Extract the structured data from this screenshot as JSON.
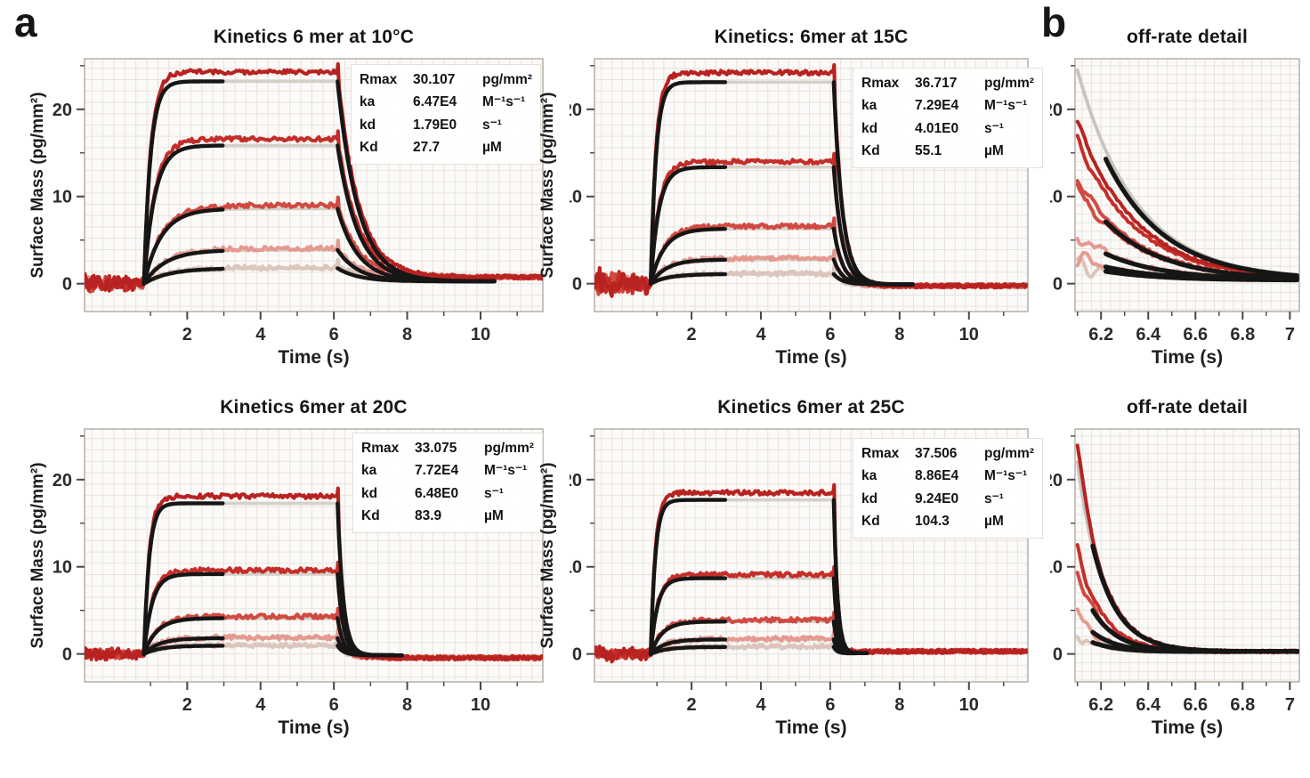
{
  "panels": {
    "a": "a",
    "b": "b"
  },
  "style": {
    "level_colors": [
      "#b82220",
      "#c52e28",
      "#d14a42",
      "#e59a90",
      "#dcc5bc"
    ],
    "fit_black": "#161616",
    "fit_gray": "#d4d0ca",
    "trace_gray": "#c7c3bf",
    "grid_minor": "#e7e3dc",
    "grid_frame": "#b7afa8",
    "tick_color": "#474747",
    "plot_bg": "#fbfaf8",
    "text_color": "#1c1c1c"
  },
  "chart_data": [
    {
      "id": "kin10",
      "panel": "a",
      "type": "line",
      "subtype": "kinetics",
      "title": "Kinetics 6 mer at 10°C",
      "xlabel": "Time (s)",
      "ylabel": "Surface Mass (pg/mm²)",
      "xlim": [
        -0.8,
        11.7
      ],
      "ylim": [
        -3.2,
        25.8
      ],
      "xticks": [
        2,
        4,
        6,
        8,
        10
      ],
      "xticks_minor": [
        1,
        3,
        5,
        7,
        9,
        11
      ],
      "yticks": [
        0,
        10,
        20
      ],
      "yticks_minor": [
        5,
        15,
        25
      ],
      "t_inject": 0.82,
      "t_dissoc": 6.1,
      "fit_assoc_end": 3.0,
      "fit_dissoc_end": 10.4,
      "kd": 1.79,
      "plateaus": [
        24.3,
        16.6,
        9.0,
        4.05,
        1.85
      ],
      "rise_rates": [
        5.5,
        3.4,
        2.1,
        1.7,
        1.5
      ],
      "baseline_noise": 1.05,
      "tail": 0.75,
      "annotation": [
        [
          "Rmax",
          "30.107",
          "pg/mm²"
        ],
        [
          "ka",
          "6.47E4",
          "M⁻¹s⁻¹"
        ],
        [
          "kd",
          "1.79E0",
          "s⁻¹"
        ],
        [
          "Kd",
          "27.7",
          "µM"
        ]
      ]
    },
    {
      "id": "kin15",
      "panel": "a",
      "type": "line",
      "subtype": "kinetics",
      "title": "Kinetics: 6mer at 15C",
      "xlabel": "Time (s)",
      "ylabel": "Surface Mass (pg/mm²)",
      "xlim": [
        -0.8,
        11.7
      ],
      "ylim": [
        -3.2,
        25.8
      ],
      "xticks": [
        2,
        4,
        6,
        8,
        10
      ],
      "xticks_minor": [
        1,
        3,
        5,
        7,
        9,
        11
      ],
      "yticks": [
        0,
        10,
        20
      ],
      "yticks_minor": [
        5,
        15,
        25
      ],
      "t_inject": 0.82,
      "t_dissoc": 6.1,
      "fit_assoc_end": 3.0,
      "fit_dissoc_end": 8.4,
      "kd": 4.01,
      "plateaus": [
        24.2,
        14.0,
        6.6,
        2.9,
        1.15
      ],
      "rise_rates": [
        6.5,
        4.2,
        2.6,
        2.2,
        2.0
      ],
      "baseline_noise": 1.5,
      "tail": -0.25,
      "annotation": [
        [
          "Rmax",
          "36.717",
          "pg/mm²"
        ],
        [
          "ka",
          "7.29E4",
          "M⁻¹s⁻¹"
        ],
        [
          "kd",
          "4.01E0",
          "s⁻¹"
        ],
        [
          "Kd",
          "55.1",
          "µM"
        ]
      ]
    },
    {
      "id": "b1",
      "panel": "b",
      "type": "line",
      "subtype": "offrate",
      "title": "off-rate detail",
      "xlabel": "Time (s)",
      "xlim": [
        6.09,
        7.04
      ],
      "ylim": [
        -3.2,
        25.8
      ],
      "xticks": [
        6.2,
        6.4,
        6.6,
        6.8,
        7
      ],
      "xticks_minor": [
        6.1,
        6.3,
        6.5,
        6.7,
        6.9
      ],
      "yticks": [
        0,
        10,
        20
      ],
      "yticks_minor": [
        5,
        15,
        25
      ],
      "t_dissoc": 6.1,
      "fit_start": 6.22,
      "kd": 4.0,
      "starts": [
        18.5,
        16.5,
        12.0,
        10.8,
        5.6,
        3.0,
        2.1
      ],
      "level_color_idx": [
        0,
        1,
        2,
        2,
        3,
        3,
        4
      ],
      "fit_starts": [
        24.5,
        12.0,
        5.6,
        3.0,
        2.1
      ],
      "gray_start": 24.5,
      "tail": 0.45
    },
    {
      "id": "kin20",
      "panel": "a",
      "type": "line",
      "subtype": "kinetics",
      "title": "Kinetics 6mer at 20C",
      "xlabel": "Time (s)",
      "ylabel": "Surface Mass (pg/mm²)",
      "xlim": [
        -0.8,
        11.7
      ],
      "ylim": [
        -3.2,
        25.8
      ],
      "xticks": [
        2,
        4,
        6,
        8,
        10
      ],
      "xticks_minor": [
        1,
        3,
        5,
        7,
        9,
        11
      ],
      "yticks": [
        0,
        10,
        20
      ],
      "yticks_minor": [
        5,
        15,
        25
      ],
      "t_inject": 0.82,
      "t_dissoc": 6.1,
      "fit_assoc_end": 3.0,
      "fit_dissoc_end": 7.9,
      "kd": 6.48,
      "plateaus": [
        18.1,
        9.6,
        4.3,
        1.9,
        1.0
      ],
      "rise_rates": [
        7.0,
        4.5,
        2.8,
        2.4,
        2.2
      ],
      "baseline_noise": 0.7,
      "tail": -0.45,
      "annotation": [
        [
          "Rmax",
          "33.075",
          "pg/mm²"
        ],
        [
          "ka",
          "7.72E4",
          "M⁻¹s⁻¹"
        ],
        [
          "kd",
          "6.48E0",
          "s⁻¹"
        ],
        [
          "Kd",
          "83.9",
          "µM"
        ]
      ]
    },
    {
      "id": "kin25",
      "panel": "a",
      "type": "line",
      "subtype": "kinetics",
      "title": "Kinetics 6mer at 25C",
      "xlabel": "Time (s)",
      "ylabel": "Surface Mass (pg/mm²)",
      "xlim": [
        -0.8,
        11.7
      ],
      "ylim": [
        -3.2,
        25.8
      ],
      "xticks": [
        2,
        4,
        6,
        8,
        10
      ],
      "xticks_minor": [
        1,
        3,
        5,
        7,
        9,
        11
      ],
      "yticks": [
        0,
        10,
        20
      ],
      "yticks_minor": [
        5,
        15,
        25
      ],
      "t_inject": 0.82,
      "t_dissoc": 6.1,
      "fit_assoc_end": 3.0,
      "fit_dissoc_end": 7.1,
      "kd": 9.24,
      "plateaus": [
        18.5,
        9.1,
        3.9,
        1.75,
        0.85
      ],
      "rise_rates": [
        7.5,
        5.0,
        3.0,
        2.5,
        2.2
      ],
      "baseline_noise": 0.8,
      "tail": 0.3,
      "annotation": [
        [
          "Rmax",
          "37.506",
          "pg/mm²"
        ],
        [
          "ka",
          "8.86E4",
          "M⁻¹s⁻¹"
        ],
        [
          "kd",
          "9.24E0",
          "s⁻¹"
        ],
        [
          "Kd",
          "104.3",
          "µM"
        ]
      ]
    },
    {
      "id": "b2",
      "panel": "b",
      "type": "line",
      "subtype": "offrate",
      "title": "off-rate detail",
      "xlabel": "Time (s)",
      "xlim": [
        6.09,
        7.04
      ],
      "ylim": [
        -3.2,
        25.8
      ],
      "xticks": [
        6.2,
        6.4,
        6.6,
        6.8,
        7
      ],
      "xticks_minor": [
        6.1,
        6.3,
        6.5,
        6.7,
        6.9
      ],
      "yticks": [
        0,
        10,
        20
      ],
      "yticks_minor": [
        5,
        15,
        25
      ],
      "t_dissoc": 6.1,
      "fit_start": 6.165,
      "kd": 9.24,
      "starts": [
        24.0,
        12.0,
        9.5,
        4.6,
        2.3
      ],
      "level_color_idx": [
        0,
        1,
        2,
        3,
        4
      ],
      "fit_starts": [
        24.0,
        9.5,
        4.6,
        2.3
      ],
      "gray_start": 22.0,
      "tail": 0.3
    }
  ]
}
